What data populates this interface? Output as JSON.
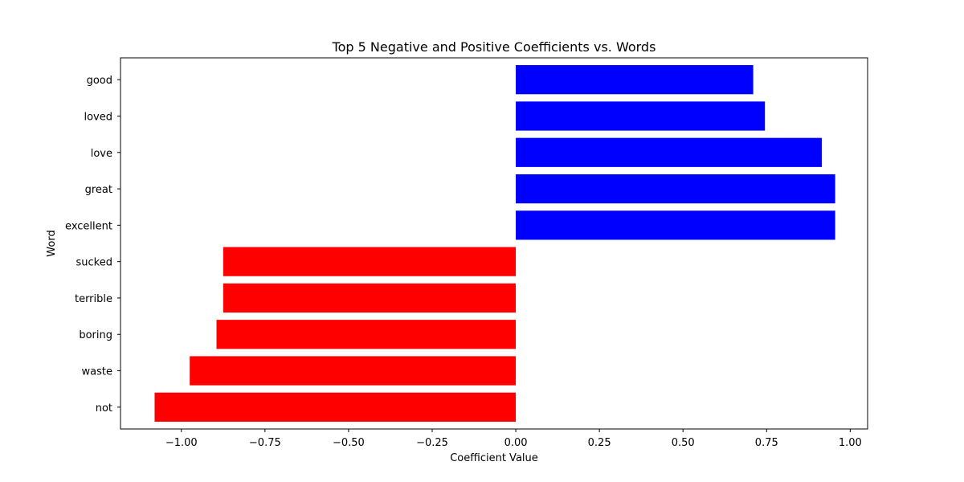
{
  "chart_data": {
    "type": "bar",
    "orientation": "horizontal",
    "title": "Top 5 Negative and Positive Coefficients vs. Words",
    "xlabel": "Coefficient Value",
    "ylabel": "Word",
    "categories": [
      "not",
      "waste",
      "boring",
      "terrible",
      "sucked",
      "excellent",
      "great",
      "love",
      "loved",
      "good"
    ],
    "values": [
      -1.08,
      -0.975,
      -0.895,
      -0.875,
      -0.875,
      0.955,
      0.955,
      0.915,
      0.745,
      0.71
    ],
    "colors": [
      "#ff0000",
      "#ff0000",
      "#ff0000",
      "#ff0000",
      "#ff0000",
      "#0000ff",
      "#0000ff",
      "#0000ff",
      "#0000ff",
      "#0000ff"
    ],
    "xlim": [
      -1.182,
      1.052
    ],
    "xticks": [
      -1.0,
      -0.75,
      -0.5,
      -0.25,
      0.0,
      0.25,
      0.5,
      0.75,
      1.0
    ],
    "xtick_labels": [
      "−1.00",
      "−0.75",
      "−0.50",
      "−0.25",
      "0.00",
      "0.25",
      "0.50",
      "0.75",
      "1.00"
    ],
    "grid": false,
    "legend": null
  }
}
